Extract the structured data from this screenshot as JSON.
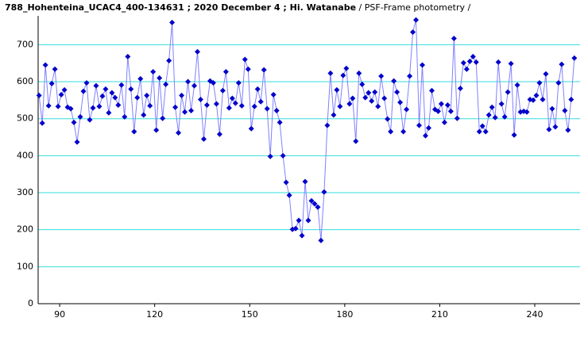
{
  "chart_data": {
    "type": "line",
    "title": "788_Hohenteina_UCAC4_400-134631 ; 2020 December 4 ; Hi. Watanabe",
    "subtitle": " / PSF-Frame photometry /",
    "x": [
      83.5,
      84.5,
      85.5,
      86.5,
      87.5,
      88.5,
      89.5,
      90.5,
      91.5,
      92.5,
      93.5,
      94.5,
      95.5,
      96.5,
      97.5,
      98.5,
      99.5,
      100.5,
      101.5,
      102.5,
      103.5,
      104.5,
      105.5,
      106.5,
      107.5,
      108.5,
      109.5,
      110.5,
      111.5,
      112.5,
      113.5,
      114.5,
      115.5,
      116.5,
      117.5,
      118.5,
      119.5,
      120.5,
      121.5,
      122.5,
      123.5,
      124.5,
      125.5,
      126.5,
      127.5,
      128.5,
      129.5,
      130.5,
      131.5,
      132.5,
      133.5,
      134.5,
      135.5,
      136.5,
      137.5,
      138.5,
      139.5,
      140.5,
      141.5,
      142.5,
      143.5,
      144.5,
      145.5,
      146.5,
      147.5,
      148.5,
      149.5,
      150.5,
      151.5,
      152.5,
      153.5,
      154.5,
      155.5,
      156.5,
      157.5,
      158.5,
      159.5,
      160.5,
      161.5,
      162.5,
      163.5,
      164.5,
      165.5,
      166.5,
      167.5,
      168.5,
      169.5,
      170.5,
      171.5,
      172.5,
      173.5,
      174.5,
      175.5,
      176.5,
      177.5,
      178.5,
      179.5,
      180.5,
      181.5,
      182.5,
      183.5,
      184.5,
      185.5,
      186.5,
      187.5,
      188.5,
      189.5,
      190.5,
      191.5,
      192.5,
      193.5,
      194.5,
      195.5,
      196.5,
      197.5,
      198.5,
      199.5,
      200.5,
      201.5,
      202.5,
      203.5,
      204.5,
      205.5,
      206.5,
      207.5,
      208.5,
      209.5,
      210.5,
      211.5,
      212.5,
      213.5,
      214.5,
      215.5,
      216.5,
      217.5,
      218.5,
      219.5,
      220.5,
      221.5,
      222.5,
      223.5,
      224.5,
      225.5,
      226.5,
      227.5,
      228.5,
      229.5,
      230.5,
      231.5,
      232.5,
      233.5,
      234.5,
      235.5,
      236.5,
      237.5,
      238.5,
      239.5,
      240.5,
      241.5,
      242.5,
      243.5,
      244.5,
      245.5,
      246.5,
      247.5,
      248.5,
      249.5,
      250.5,
      251.5,
      252.5
    ],
    "series": [
      {
        "color": "#0000cc",
        "values": [
          563,
          488,
          645,
          535,
          595,
          634,
          533,
          565,
          578,
          531,
          527,
          490,
          437,
          505,
          574,
          597,
          497,
          529,
          589,
          533,
          561,
          580,
          516,
          570,
          557,
          537,
          591,
          505,
          668,
          580,
          465,
          557,
          608,
          510,
          563,
          535,
          627,
          469,
          610,
          501,
          593,
          657,
          760,
          531,
          462,
          563,
          518,
          600,
          522,
          589,
          681,
          552,
          445,
          537,
          602,
          597,
          540,
          458,
          576,
          627,
          529,
          555,
          542,
          597,
          535,
          660,
          634,
          473,
          533,
          580,
          546,
          632,
          527,
          398,
          565,
          522,
          490,
          400,
          328,
          293,
          201,
          203,
          225,
          184,
          330,
          225,
          278,
          270,
          261,
          171,
          302,
          482,
          623,
          510,
          578,
          533,
          617,
          636,
          540,
          555,
          439,
          623,
          593,
          557,
          570,
          548,
          572,
          533,
          615,
          555,
          499,
          465,
          602,
          572,
          544,
          465,
          525,
          615,
          734,
          767,
          482,
          645,
          454,
          475,
          576,
          525,
          520,
          540,
          490,
          537,
          520,
          717,
          501,
          582,
          651,
          634,
          655,
          668,
          653,
          465,
          480,
          465,
          510,
          531,
          503,
          653,
          540,
          505,
          572,
          649,
          456,
          591,
          518,
          520,
          518,
          552,
          550,
          563,
          597,
          552,
          621,
          471,
          527,
          478,
          597,
          647,
          522,
          469,
          552,
          664
        ]
      }
    ],
    "line_color": "#8080ff",
    "grid_color": "#33dddd",
    "xlim": [
      83.2,
      254.3
    ],
    "xticks": [
      90,
      120,
      150,
      180,
      210,
      240
    ],
    "ylim": [
      0,
      778
    ],
    "yticks": [
      0,
      100,
      200,
      300,
      400,
      500,
      600,
      700
    ],
    "grid": true
  }
}
